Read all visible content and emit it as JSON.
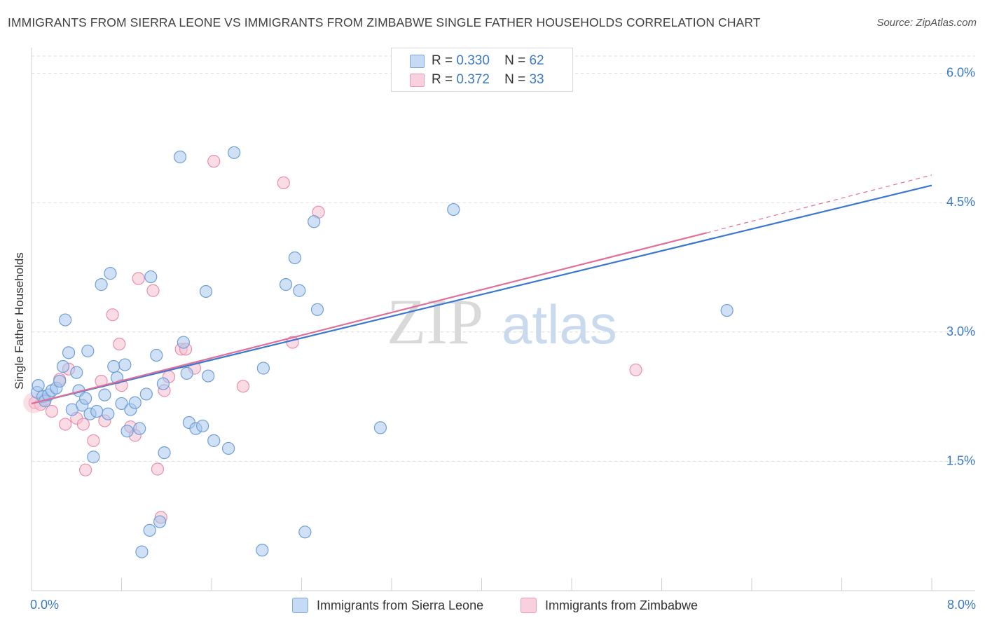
{
  "header": {
    "title": "IMMIGRANTS FROM SIERRA LEONE VS IMMIGRANTS FROM ZIMBABWE SINGLE FATHER HOUSEHOLDS CORRELATION CHART",
    "source": "Source: ZipAtlas.com"
  },
  "legend": {
    "series1": {
      "r_label": "R =",
      "r_value": "0.330",
      "n_label": "N =",
      "n_value": "62"
    },
    "series2": {
      "r_label": "R =",
      "r_value": "0.372",
      "n_label": "N =",
      "n_value": "33"
    }
  },
  "watermark": {
    "zip": "ZIP",
    "atlas": "atlas"
  },
  "colors": {
    "blue_fill": "#aac8ee",
    "blue_stroke": "#6f9fd8",
    "blue_line": "#3a78d0",
    "pink_fill": "#f6bfd0",
    "pink_stroke": "#e98fae",
    "pink_line": "#e0709a",
    "tick_label": "#3a78c9",
    "grid": "#dcdcdc"
  },
  "chart_data": {
    "type": "scatter",
    "title": "IMMIGRANTS FROM SIERRA LEONE VS IMMIGRANTS FROM ZIMBABWE SINGLE FATHER HOUSEHOLDS CORRELATION CHART",
    "xlabel": "",
    "ylabel": "Single Father Households",
    "xlim": [
      0,
      8
    ],
    "ylim": [
      0,
      6.2
    ],
    "x_tick_labels": [
      "0.0%",
      "8.0%"
    ],
    "y_ticks": [
      {
        "value": 1.5,
        "label": "1.5%"
      },
      {
        "value": 3.0,
        "label": "3.0%"
      },
      {
        "value": 4.5,
        "label": "4.5%"
      },
      {
        "value": 6.0,
        "label": "6.0%"
      }
    ],
    "series": [
      {
        "name": "Immigrants from Sierra Leone",
        "color": "blue",
        "points": [
          [
            0.05,
            2.3
          ],
          [
            0.06,
            2.38
          ],
          [
            0.1,
            2.25
          ],
          [
            0.12,
            2.2
          ],
          [
            0.15,
            2.27
          ],
          [
            0.18,
            2.32
          ],
          [
            0.22,
            2.35
          ],
          [
            0.25,
            2.43
          ],
          [
            0.28,
            2.6
          ],
          [
            0.3,
            3.14
          ],
          [
            0.33,
            2.76
          ],
          [
            0.36,
            2.1
          ],
          [
            0.4,
            2.53
          ],
          [
            0.42,
            2.32
          ],
          [
            0.45,
            2.15
          ],
          [
            0.48,
            2.23
          ],
          [
            0.5,
            2.78
          ],
          [
            0.52,
            2.05
          ],
          [
            0.55,
            1.55
          ],
          [
            0.58,
            2.08
          ],
          [
            0.62,
            3.55
          ],
          [
            0.65,
            2.27
          ],
          [
            0.68,
            2.05
          ],
          [
            0.7,
            3.68
          ],
          [
            0.73,
            2.6
          ],
          [
            0.76,
            2.47
          ],
          [
            0.8,
            2.17
          ],
          [
            0.83,
            2.62
          ],
          [
            0.85,
            1.85
          ],
          [
            0.88,
            2.1
          ],
          [
            0.92,
            2.18
          ],
          [
            0.96,
            1.88
          ],
          [
            0.98,
            0.45
          ],
          [
            1.02,
            2.28
          ],
          [
            1.05,
            0.7
          ],
          [
            1.06,
            3.64
          ],
          [
            1.11,
            2.73
          ],
          [
            1.14,
            0.8
          ],
          [
            1.17,
            2.4
          ],
          [
            1.18,
            1.6
          ],
          [
            1.32,
            5.03
          ],
          [
            1.35,
            2.88
          ],
          [
            1.38,
            2.52
          ],
          [
            1.4,
            1.95
          ],
          [
            1.46,
            1.88
          ],
          [
            1.52,
            1.91
          ],
          [
            1.55,
            3.47
          ],
          [
            1.57,
            2.49
          ],
          [
            1.62,
            1.74
          ],
          [
            1.8,
            5.08
          ],
          [
            1.75,
            1.65
          ],
          [
            2.06,
            2.58
          ],
          [
            2.05,
            0.47
          ],
          [
            2.26,
            3.55
          ],
          [
            2.34,
            3.86
          ],
          [
            2.38,
            3.48
          ],
          [
            2.43,
            0.68
          ],
          [
            2.51,
            4.28
          ],
          [
            2.54,
            3.26
          ],
          [
            3.1,
            1.89
          ],
          [
            3.75,
            4.42
          ],
          [
            6.18,
            3.25
          ]
        ]
      },
      {
        "name": "Immigrants from Zimbabwe",
        "color": "pink",
        "points": [
          [
            0.03,
            2.18
          ],
          [
            0.08,
            2.16
          ],
          [
            0.12,
            2.22
          ],
          [
            0.18,
            2.08
          ],
          [
            0.25,
            2.45
          ],
          [
            0.3,
            1.93
          ],
          [
            0.33,
            2.57
          ],
          [
            0.4,
            2.0
          ],
          [
            0.46,
            1.93
          ],
          [
            0.48,
            1.4
          ],
          [
            0.55,
            1.74
          ],
          [
            0.62,
            2.43
          ],
          [
            0.65,
            1.97
          ],
          [
            0.72,
            3.2
          ],
          [
            0.78,
            2.86
          ],
          [
            0.8,
            2.38
          ],
          [
            0.88,
            1.9
          ],
          [
            0.92,
            1.8
          ],
          [
            0.95,
            3.62
          ],
          [
            1.08,
            3.48
          ],
          [
            1.12,
            1.41
          ],
          [
            1.15,
            0.85
          ],
          [
            1.18,
            2.32
          ],
          [
            1.22,
            2.48
          ],
          [
            1.33,
            2.8
          ],
          [
            1.37,
            2.8
          ],
          [
            1.45,
            2.58
          ],
          [
            1.62,
            4.98
          ],
          [
            1.88,
            2.37
          ],
          [
            2.24,
            4.73
          ],
          [
            2.32,
            2.88
          ],
          [
            2.55,
            4.39
          ],
          [
            5.37,
            2.56
          ]
        ]
      }
    ],
    "trend_lines": [
      {
        "series": "Immigrants from Sierra Leone",
        "x": [
          0.0,
          8.0
        ],
        "y": [
          2.17,
          4.7
        ],
        "dashed_extension": false
      },
      {
        "series": "Immigrants from Zimbabwe",
        "x": [
          0.0,
          6.0
        ],
        "y": [
          2.17,
          4.15
        ],
        "dashed_extension_to": [
          8.0,
          4.82
        ]
      }
    ]
  },
  "bottom_legend": {
    "label1": "Immigrants from Sierra Leone",
    "label2": "Immigrants from Zimbabwe"
  }
}
